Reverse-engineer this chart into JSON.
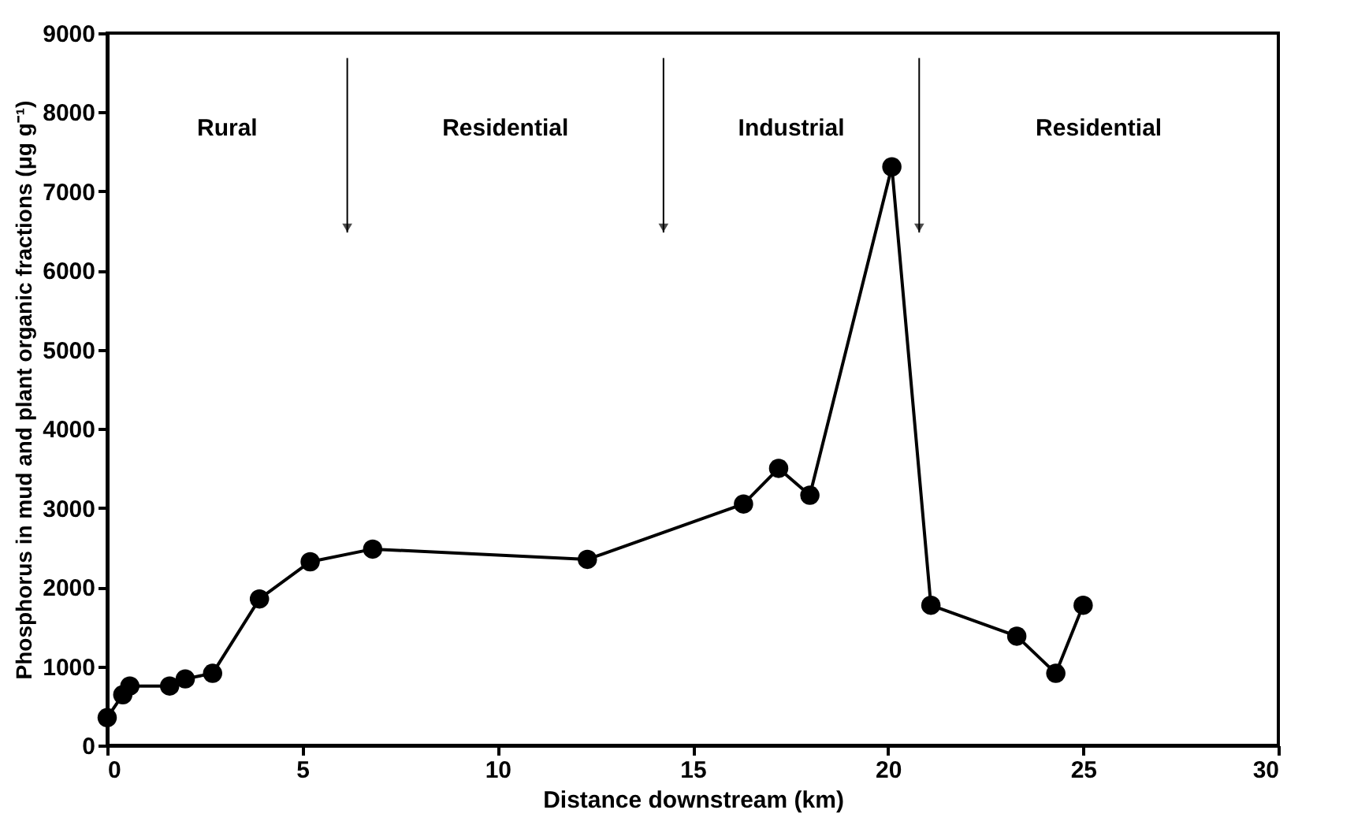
{
  "chart_data": {
    "type": "line",
    "xlabel": "Distance downstream (km)",
    "ylabel": "Phosphorus in mud and plant organic fractions (μg g⁻¹)",
    "x": [
      0,
      0.4,
      0.58,
      1.6,
      2.0,
      2.7,
      3.9,
      5.2,
      6.8,
      12.3,
      16.3,
      17.2,
      18.0,
      20.1,
      21.1,
      23.3,
      24.3,
      25.0
    ],
    "series": [
      {
        "color": "#000000",
        "values": [
          350,
          640,
          750,
          750,
          840,
          910,
          1850,
          2320,
          2480,
          2350,
          3050,
          3500,
          3160,
          7310,
          1770,
          1380,
          910,
          1770
        ]
      }
    ],
    "xlim": [
      0,
      30
    ],
    "xticks": [
      0,
      5,
      10,
      15,
      20,
      25,
      30
    ],
    "ylim": [
      0,
      9000
    ],
    "yticks": [
      0,
      1000,
      2000,
      3000,
      4000,
      5000,
      6000,
      7000,
      8000,
      9000
    ],
    "grid": false,
    "legend": false,
    "marker": "circle",
    "line_style": "solid",
    "ref_lines": [
      {
        "axis": "x",
        "value": 6.15
      },
      {
        "axis": "x",
        "value": 14.25
      },
      {
        "axis": "x",
        "value": 20.8
      }
    ],
    "annotations": [
      "Rural",
      "Residential",
      "Industrial",
      "Residential"
    ]
  }
}
